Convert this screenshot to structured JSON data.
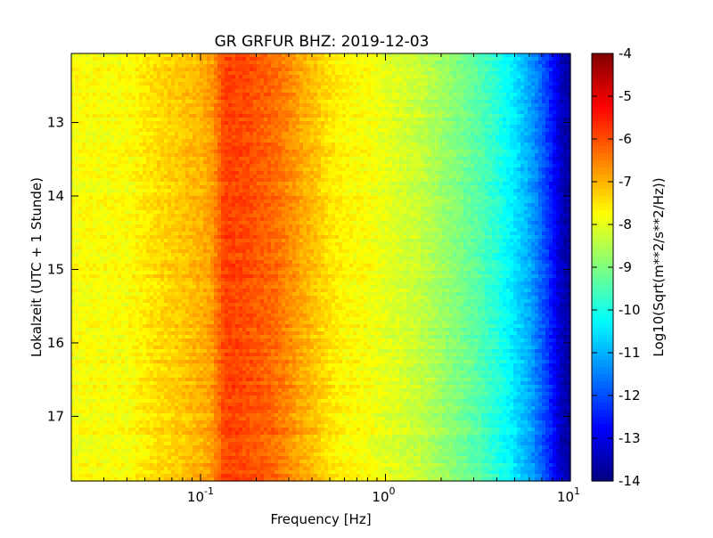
{
  "chart_data": {
    "type": "heatmap",
    "title": "GR GRFUR BHZ: 2019-12-03",
    "xlabel": "Frequency [Hz]",
    "ylabel": "Lokalzeit (UTC + 1 Stunde)",
    "xscale": "log",
    "xlim": [
      0.02,
      10
    ],
    "ylim": [
      17.88,
      12.06
    ],
    "x_ticks": [
      {
        "value": 0.1,
        "base": "10",
        "exp": "-1"
      },
      {
        "value": 1,
        "base": "10",
        "exp": "0"
      },
      {
        "value": 10,
        "base": "10",
        "exp": "1"
      }
    ],
    "y_ticks": [
      {
        "value": 13,
        "label": "13"
      },
      {
        "value": 14,
        "label": "14"
      },
      {
        "value": 15,
        "label": "15"
      },
      {
        "value": 16,
        "label": "16"
      },
      {
        "value": 17,
        "label": "17"
      }
    ],
    "colorbar": {
      "label": "Log10(Sqrt(m**2/s**2/Hz))",
      "colormap": "jet",
      "range": [
        -14,
        -4
      ],
      "ticks": [
        "-4",
        "-5",
        "-6",
        "-7",
        "-8",
        "-9",
        "-10",
        "-11",
        "-12",
        "-13",
        "-14"
      ]
    },
    "spectrum_profile": {
      "frequency_hz": [
        0.02,
        0.04,
        0.06,
        0.08,
        0.1,
        0.115,
        0.135,
        0.15,
        0.18,
        0.2,
        0.25,
        0.3,
        0.35,
        0.4,
        0.5,
        0.6,
        0.8,
        1.0,
        1.5,
        2.0,
        3.0,
        4.0,
        5.0,
        6.0,
        7.0,
        8.0,
        9.0,
        10.0
      ],
      "value": [
        -7.8,
        -7.8,
        -7.4,
        -7.2,
        -7.0,
        -6.8,
        -5.9,
        -5.9,
        -6.0,
        -6.1,
        -6.3,
        -6.6,
        -6.9,
        -7.1,
        -7.5,
        -7.7,
        -7.8,
        -8.0,
        -8.3,
        -8.7,
        -9.3,
        -9.9,
        -10.5,
        -11.1,
        -11.8,
        -12.6,
        -13.4,
        -13.7
      ]
    }
  }
}
